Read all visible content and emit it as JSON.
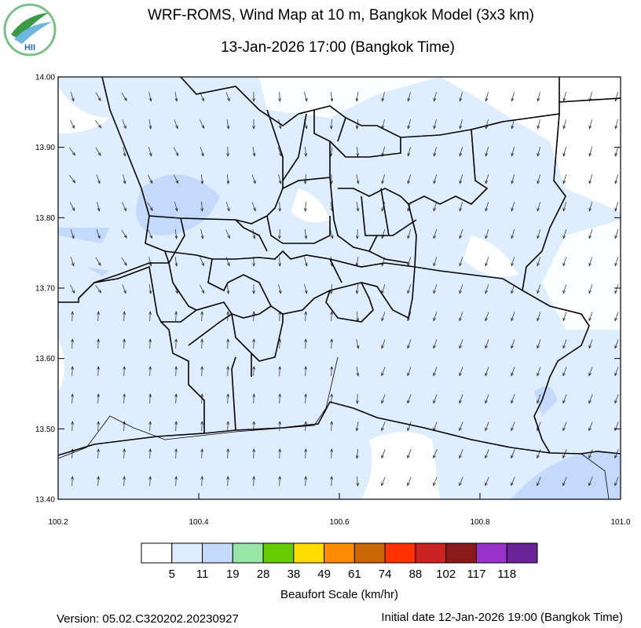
{
  "header": {
    "title": "WRF-ROMS, Wind Map at 10 m, Bangkok Model (3x3 km)",
    "subtitle": "13-Jan-2026 17:00 (Bangkok Time)",
    "logo_text": "HII"
  },
  "map": {
    "lat_labels": [
      "14.00",
      "13.90",
      "13.80",
      "13.70",
      "13.60",
      "13.50",
      "13.40"
    ],
    "lon_labels": [
      "100.2",
      "100.4",
      "100.6",
      "100.8",
      "101.0"
    ]
  },
  "legend": {
    "title": "Beaufort Scale (km/hr)",
    "colors": [
      "#ffffff",
      "#deedff",
      "#c3dafd",
      "#97e6a6",
      "#66cc00",
      "#ffdd00",
      "#ff8c00",
      "#cc6600",
      "#ff3300",
      "#cc2222",
      "#8a1a1a",
      "#9933cc",
      "#6a2299"
    ],
    "labels": [
      5,
      11,
      19,
      28,
      38,
      49,
      61,
      74,
      88,
      102,
      117,
      118
    ]
  },
  "footer": {
    "version": "Version: 05.02.C320202.20230927",
    "initial_date": "Initial date 12-Jan-2026 19:00 (Bangkok Time)"
  }
}
